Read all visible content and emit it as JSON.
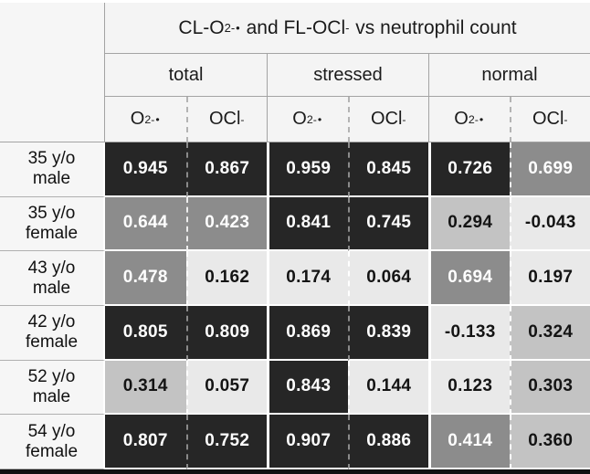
{
  "figure": {
    "title_parts": {
      "p1": "CL-O",
      "sub1": "2",
      "sup1": "-•",
      "p2": " and FL-OCl",
      "sup2": "-",
      "p3": " vs neutrophil count"
    }
  },
  "columns": {
    "metrics": [
      {
        "base": "O",
        "sub": "2",
        "sup": "-•"
      },
      {
        "base": "OCl",
        "sup": "-"
      }
    ]
  },
  "chart_data": {
    "type": "heatmap",
    "title": "CL-O2-• and FL-OCl- vs neutrophil count",
    "col_groups": [
      "total",
      "stressed",
      "normal"
    ],
    "col_metrics": [
      "O2-•",
      "OCl-"
    ],
    "col_labels": [
      "total O2-•",
      "total OCl-",
      "stressed O2-•",
      "stressed OCl-",
      "normal O2-•",
      "normal OCl-"
    ],
    "row_labels": [
      "35 y/o male",
      "35 y/o female",
      "43 y/o male",
      "42 y/o female",
      "52 y/o male",
      "54 y/o female"
    ],
    "values": [
      [
        0.945,
        0.867,
        0.959,
        0.845,
        0.726,
        0.699
      ],
      [
        0.644,
        0.423,
        0.841,
        0.745,
        0.294,
        -0.043
      ],
      [
        0.478,
        0.162,
        0.174,
        0.064,
        0.694,
        0.197
      ],
      [
        0.805,
        0.809,
        0.869,
        0.839,
        -0.133,
        0.324
      ],
      [
        0.314,
        0.057,
        0.843,
        0.144,
        0.123,
        0.303
      ],
      [
        0.807,
        0.752,
        0.907,
        0.886,
        0.414,
        0.36
      ]
    ],
    "value_format": "3 decimal places",
    "shading": "darker cell = higher correlation",
    "legend_position": "none",
    "grid": "off"
  },
  "heatmap_style": {
    "tiers": [
      {
        "min": 0.7,
        "bg": "#262626",
        "fg": "#ffffff",
        "divider": "#8a8a8a"
      },
      {
        "min": 0.4,
        "bg": "#8c8c8c",
        "fg": "#ffffff",
        "divider": "#ededed"
      },
      {
        "min": 0.25,
        "bg": "#c3c3c3",
        "fg": "#141414",
        "divider": "#ffffff"
      },
      {
        "min": -999,
        "bg": "#e9e9e9",
        "fg": "#141414",
        "divider": "#ffffff"
      }
    ],
    "header_bg": "#f4f4f4",
    "label_bg": "#f6f6f6",
    "grid_line": "#a3a3a3",
    "bottom_border": "#111111"
  }
}
